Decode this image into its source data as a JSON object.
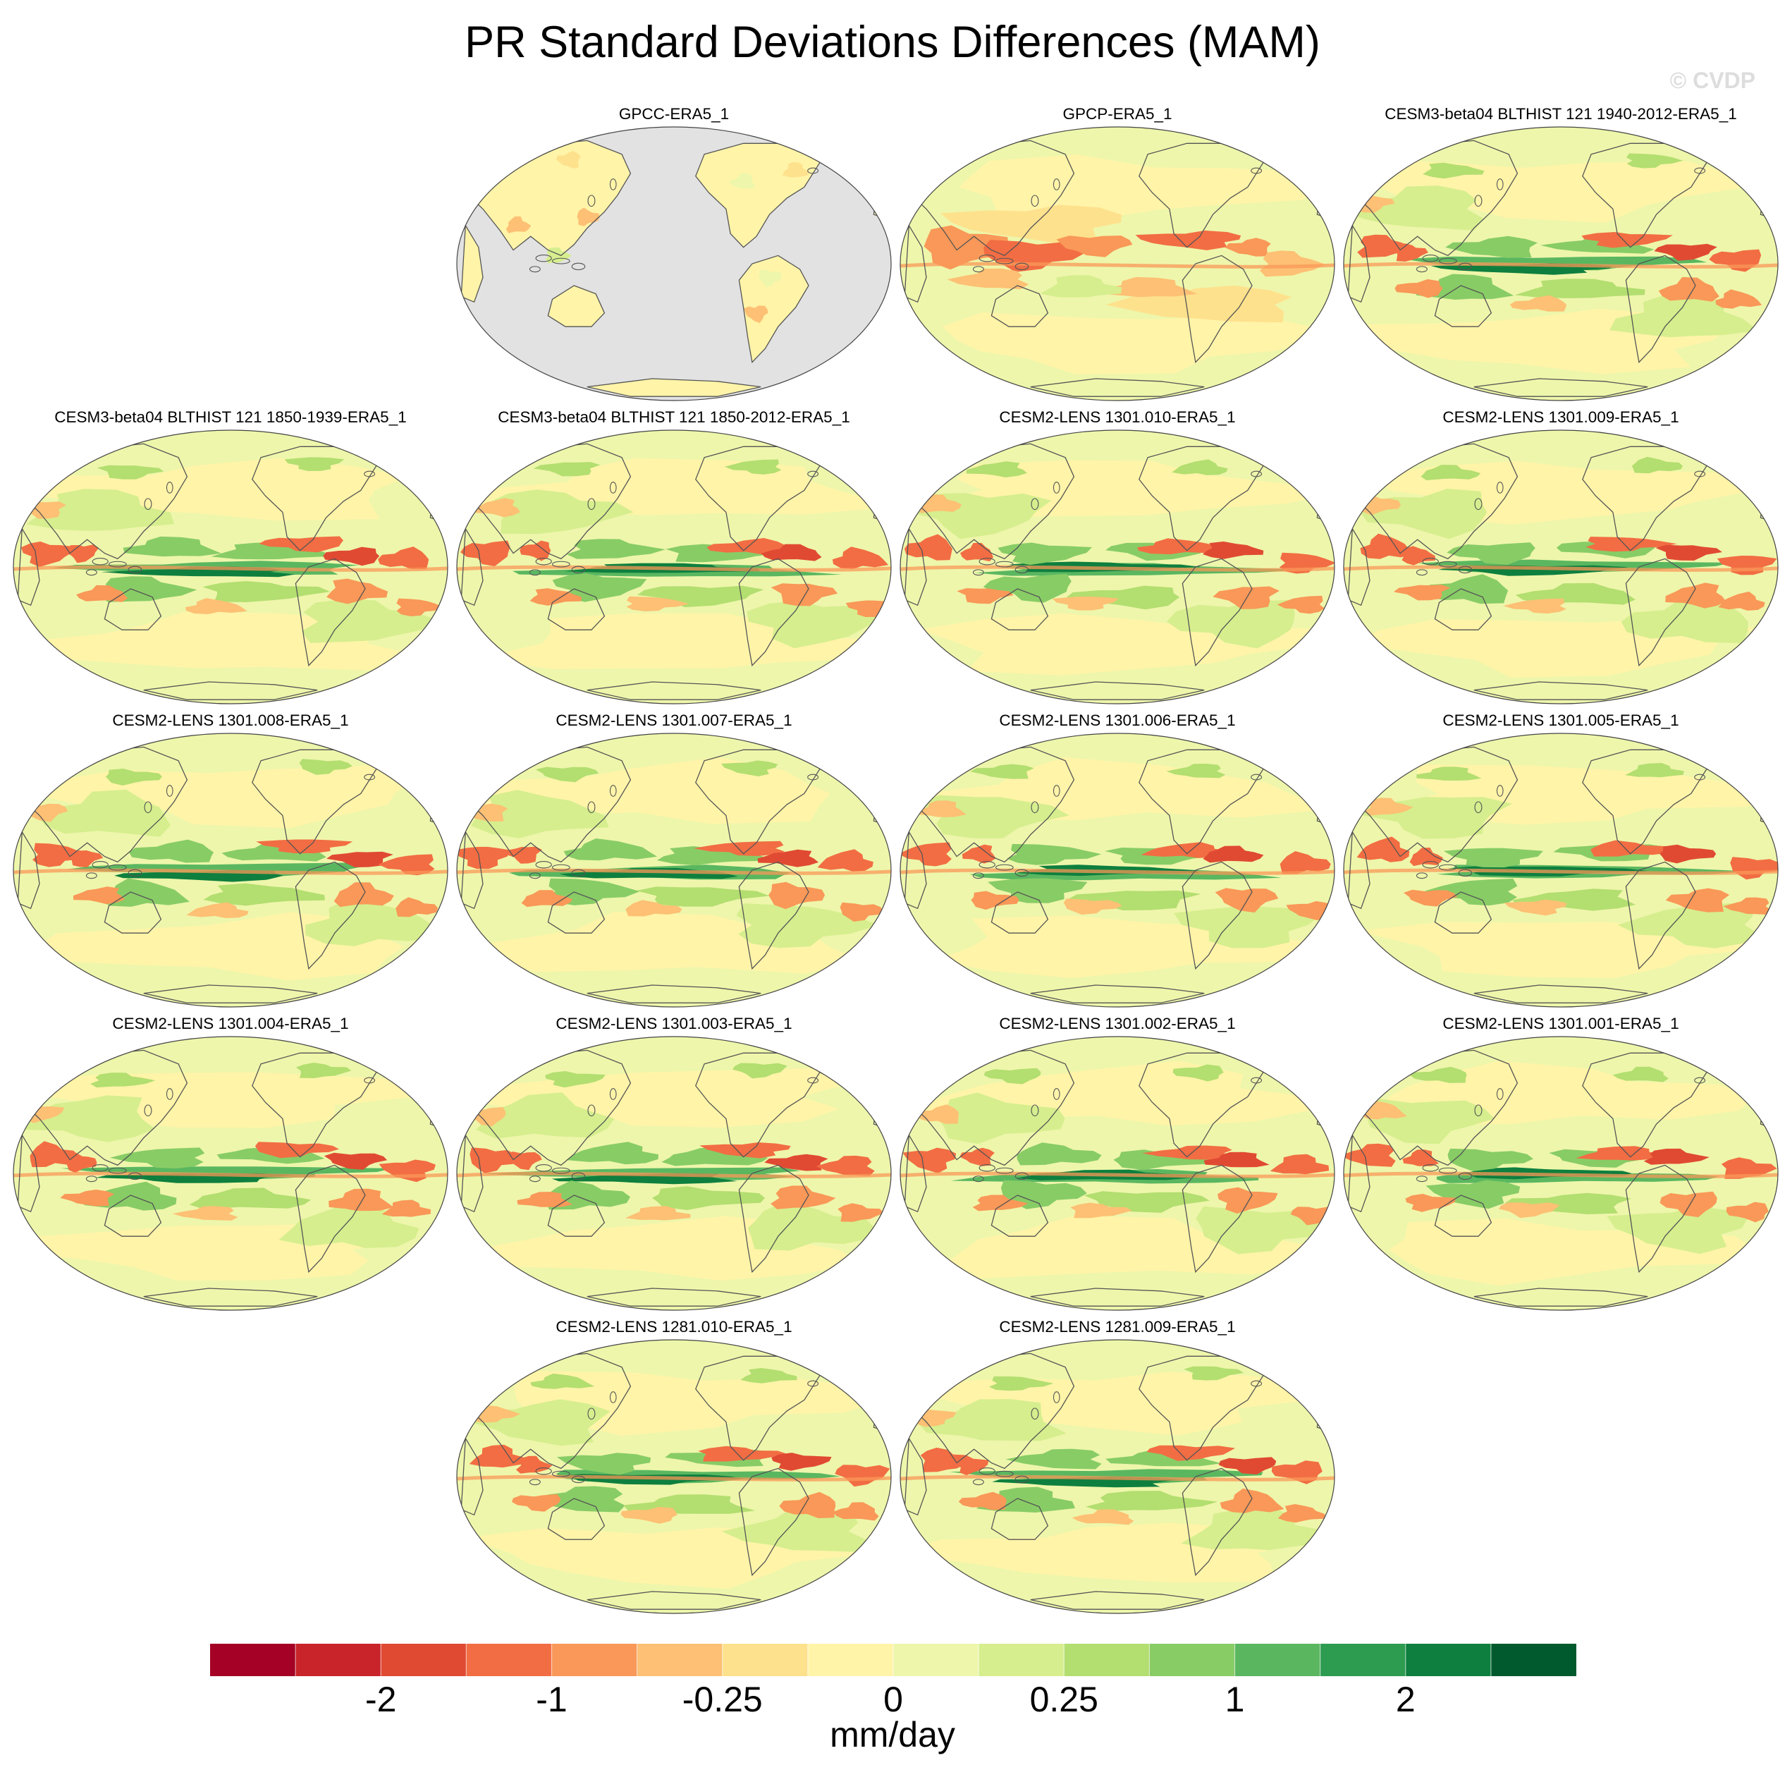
{
  "title": "PR Standard Deviations Differences (MAM)",
  "watermark": "© CVDP",
  "units": "mm/day",
  "colors": {
    "ocean_missing": "#e2e2e2",
    "coast": "#555555",
    "scale": [
      "#a50026",
      "#c8242a",
      "#e04a33",
      "#f26d43",
      "#f99858",
      "#fdc074",
      "#fee18d",
      "#fff4a8",
      "#eef6ab",
      "#d6ee8e",
      "#b3de70",
      "#88cc66",
      "#5ab760",
      "#2d9b50",
      "#0e7f3e",
      "#005a2e"
    ]
  },
  "colorbar": {
    "labels": [
      "-2",
      "-1",
      "-0.25",
      "0",
      "0.25",
      "1",
      "2"
    ],
    "label_boundaries": [
      2,
      4,
      6,
      8,
      10,
      12,
      14
    ]
  },
  "panels": [
    {
      "title": "GPCC-ERA5_1",
      "kind": "land"
    },
    {
      "title": "GPCP-ERA5_1",
      "kind": "obs"
    },
    {
      "title": "CESM3-beta04 BLTHIST 121 1940-2012-ERA5_1",
      "kind": "model"
    },
    {
      "title": "CESM3-beta04 BLTHIST 121 1850-1939-ERA5_1",
      "kind": "model"
    },
    {
      "title": "CESM3-beta04 BLTHIST 121 1850-2012-ERA5_1",
      "kind": "model"
    },
    {
      "title": "CESM2-LENS 1301.010-ERA5_1",
      "kind": "model"
    },
    {
      "title": "CESM2-LENS 1301.009-ERA5_1",
      "kind": "model"
    },
    {
      "title": "CESM2-LENS 1301.008-ERA5_1",
      "kind": "model"
    },
    {
      "title": "CESM2-LENS 1301.007-ERA5_1",
      "kind": "model"
    },
    {
      "title": "CESM2-LENS 1301.006-ERA5_1",
      "kind": "model"
    },
    {
      "title": "CESM2-LENS 1301.005-ERA5_1",
      "kind": "model"
    },
    {
      "title": "CESM2-LENS 1301.004-ERA5_1",
      "kind": "model"
    },
    {
      "title": "CESM2-LENS 1301.003-ERA5_1",
      "kind": "model"
    },
    {
      "title": "CESM2-LENS 1301.002-ERA5_1",
      "kind": "model"
    },
    {
      "title": "CESM2-LENS 1301.001-ERA5_1",
      "kind": "model"
    },
    {
      "title": "CESM2-LENS 1281.010-ERA5_1",
      "kind": "model"
    },
    {
      "title": "CESM2-LENS 1281.009-ERA5_1",
      "kind": "model"
    }
  ]
}
